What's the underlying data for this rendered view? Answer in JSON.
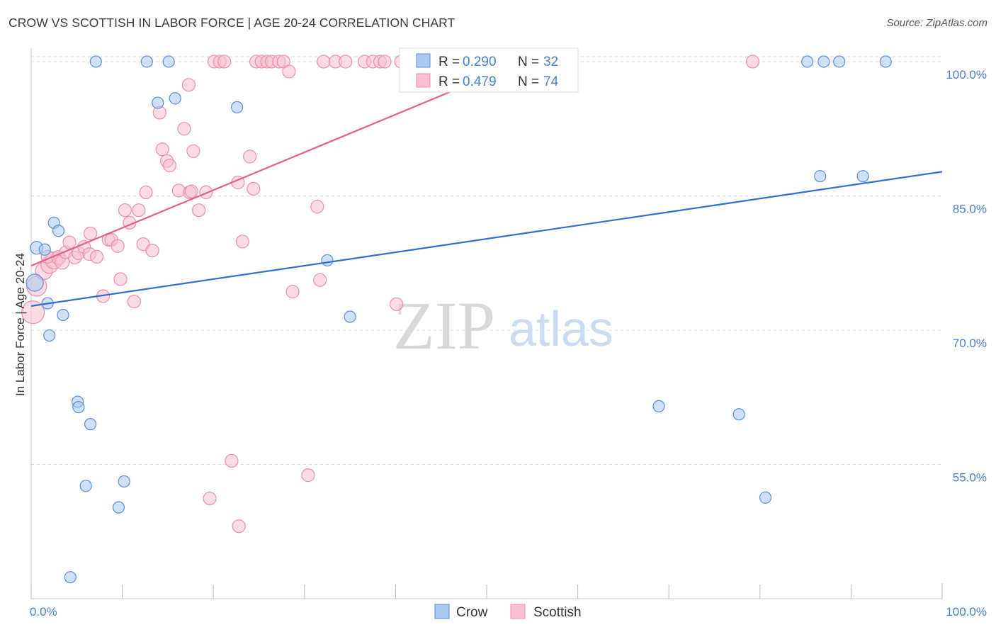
{
  "title": "CROW VS SCOTTISH IN LABOR FORCE | AGE 20-24 CORRELATION CHART",
  "source": "Source: ZipAtlas.com",
  "watermark": {
    "zip": "ZIP",
    "atlas": "atlas"
  },
  "colors": {
    "crow_fill": "#aac8f0",
    "crow_stroke": "#5a8fd8",
    "crow_line": "#2d6fd0",
    "scottish_fill": "#f8c0d0",
    "scottish_stroke": "#e890ac",
    "scottish_line": "#e0608c",
    "accent_text": "#4a7fd0",
    "grid": "#dddddd"
  },
  "chart_data": {
    "type": "scatter",
    "title": "CROW VS SCOTTISH IN LABOR FORCE | AGE 20-24 CORRELATION CHART",
    "xlabel": "",
    "ylabel": "In Labor Force | Age 20-24",
    "xlim": [
      0,
      100
    ],
    "ylim": [
      40,
      101.5
    ],
    "x_tick_labels": [
      {
        "value": 0,
        "label": "0.0%"
      },
      {
        "value": 100,
        "label": "100.0%"
      }
    ],
    "y_tick_labels": [
      {
        "value": 55,
        "label": "55.0%"
      },
      {
        "value": 70,
        "label": "70.0%"
      },
      {
        "value": 85,
        "label": "85.0%"
      },
      {
        "value": 100,
        "label": "100.0%"
      }
    ],
    "legend": [
      {
        "name": "Crow",
        "r_label": "R = ",
        "r_value": "0.290",
        "n_label": "N = ",
        "n_value": "32"
      },
      {
        "name": "Scottish",
        "r_label": "R = ",
        "r_value": "0.479",
        "n_label": "N = ",
        "n_value": "74"
      }
    ],
    "series": [
      {
        "name": "Crow",
        "trend": {
          "x0": 0,
          "y0": 72.7,
          "x1": 100,
          "y1": 87.7
        },
        "points": [
          [
            0.4,
            75.3,
            12
          ],
          [
            0.6,
            79.2,
            9
          ],
          [
            1.5,
            79.0,
            8
          ],
          [
            1.8,
            73.0,
            8
          ],
          [
            2.0,
            69.4,
            8
          ],
          [
            2.5,
            82.0,
            8
          ],
          [
            3.0,
            81.1,
            8
          ],
          [
            3.5,
            71.7,
            8
          ],
          [
            5.1,
            62.0,
            8
          ],
          [
            5.2,
            61.4,
            8
          ],
          [
            6.5,
            59.5,
            8
          ],
          [
            6.0,
            52.6,
            8
          ],
          [
            10.2,
            53.1,
            8
          ],
          [
            9.6,
            50.2,
            8
          ],
          [
            4.3,
            42.4,
            8
          ],
          [
            7.1,
            100.0,
            8
          ],
          [
            12.7,
            100.0,
            8
          ],
          [
            15.1,
            100.0,
            8
          ],
          [
            13.9,
            95.4,
            8
          ],
          [
            15.8,
            95.9,
            8
          ],
          [
            22.6,
            94.9,
            8
          ],
          [
            32.5,
            77.8,
            8
          ],
          [
            35.0,
            71.5,
            8
          ],
          [
            68.9,
            61.5,
            8
          ],
          [
            77.7,
            60.6,
            8
          ],
          [
            80.6,
            51.3,
            8
          ],
          [
            86.6,
            87.2,
            8
          ],
          [
            91.3,
            87.2,
            8
          ],
          [
            85.2,
            100.0,
            8
          ],
          [
            87.0,
            100.0,
            8
          ],
          [
            88.7,
            100.0,
            8
          ],
          [
            93.8,
            100.0,
            8
          ]
        ]
      },
      {
        "name": "Scottish",
        "trend": {
          "x0": 0,
          "y0": 77.2,
          "x1": 54,
          "y1": 100
        },
        "points": [
          [
            0.2,
            72.0,
            16
          ],
          [
            0.6,
            74.9,
            14
          ],
          [
            1.4,
            76.6,
            12
          ],
          [
            2.0,
            77.3,
            12
          ],
          [
            2.5,
            77.8,
            12
          ],
          [
            3.0,
            78.1,
            10
          ],
          [
            3.4,
            77.6,
            10
          ],
          [
            1.8,
            78.2,
            9
          ],
          [
            3.8,
            78.7,
            9
          ],
          [
            4.8,
            78.1,
            9
          ],
          [
            5.2,
            78.6,
            9
          ],
          [
            5.8,
            79.3,
            9
          ],
          [
            6.4,
            78.5,
            9
          ],
          [
            7.2,
            78.2,
            9
          ],
          [
            4.2,
            79.8,
            9
          ],
          [
            6.5,
            80.8,
            9
          ],
          [
            8.5,
            80.1,
            9
          ],
          [
            8.8,
            80.1,
            9
          ],
          [
            9.5,
            79.4,
            9
          ],
          [
            10.3,
            83.4,
            9
          ],
          [
            10.8,
            82.0,
            9
          ],
          [
            11.8,
            83.4,
            9
          ],
          [
            12.6,
            85.4,
            9
          ],
          [
            12.3,
            79.6,
            9
          ],
          [
            13.3,
            78.9,
            9
          ],
          [
            7.9,
            73.8,
            9
          ],
          [
            11.3,
            73.2,
            9
          ],
          [
            9.8,
            75.7,
            9
          ],
          [
            14.1,
            94.3,
            9
          ],
          [
            14.4,
            90.2,
            9
          ],
          [
            14.9,
            88.9,
            9
          ],
          [
            15.2,
            88.4,
            9
          ],
          [
            16.2,
            85.6,
            9
          ],
          [
            16.8,
            92.5,
            9
          ],
          [
            17.3,
            97.4,
            9
          ],
          [
            17.4,
            85.4,
            9
          ],
          [
            17.6,
            85.5,
            9
          ],
          [
            17.8,
            90.0,
            9
          ],
          [
            18.4,
            83.4,
            9
          ],
          [
            19.2,
            85.4,
            9
          ],
          [
            22.7,
            86.5,
            9
          ],
          [
            23.2,
            79.9,
            9
          ],
          [
            24.0,
            89.4,
            9
          ],
          [
            24.4,
            85.8,
            9
          ],
          [
            28.7,
            74.3,
            9
          ],
          [
            31.4,
            83.8,
            9
          ],
          [
            31.7,
            75.6,
            9
          ],
          [
            40.1,
            72.9,
            9
          ],
          [
            22.0,
            55.4,
            9
          ],
          [
            19.6,
            51.2,
            9
          ],
          [
            22.8,
            48.1,
            9
          ],
          [
            30.4,
            53.8,
            9
          ],
          [
            20.1,
            100.0,
            9
          ],
          [
            20.7,
            100.0,
            9
          ],
          [
            21.2,
            100.0,
            9
          ],
          [
            24.7,
            100.0,
            9
          ],
          [
            25.3,
            100.0,
            9
          ],
          [
            25.9,
            100.0,
            9
          ],
          [
            26.4,
            100.0,
            9
          ],
          [
            27.2,
            100.0,
            9
          ],
          [
            27.7,
            100.0,
            9
          ],
          [
            28.3,
            98.9,
            9
          ],
          [
            32.1,
            100.0,
            9
          ],
          [
            33.4,
            100.0,
            9
          ],
          [
            34.5,
            100.0,
            9
          ],
          [
            36.6,
            100.0,
            9
          ],
          [
            37.5,
            100.0,
            9
          ],
          [
            38.3,
            100.0,
            9
          ],
          [
            38.8,
            100.0,
            9
          ],
          [
            40.6,
            100.0,
            9
          ],
          [
            41.9,
            100.0,
            9
          ],
          [
            53.4,
            100.0,
            9
          ],
          [
            54.2,
            100.0,
            9
          ],
          [
            79.2,
            100.0,
            9
          ]
        ]
      }
    ]
  }
}
